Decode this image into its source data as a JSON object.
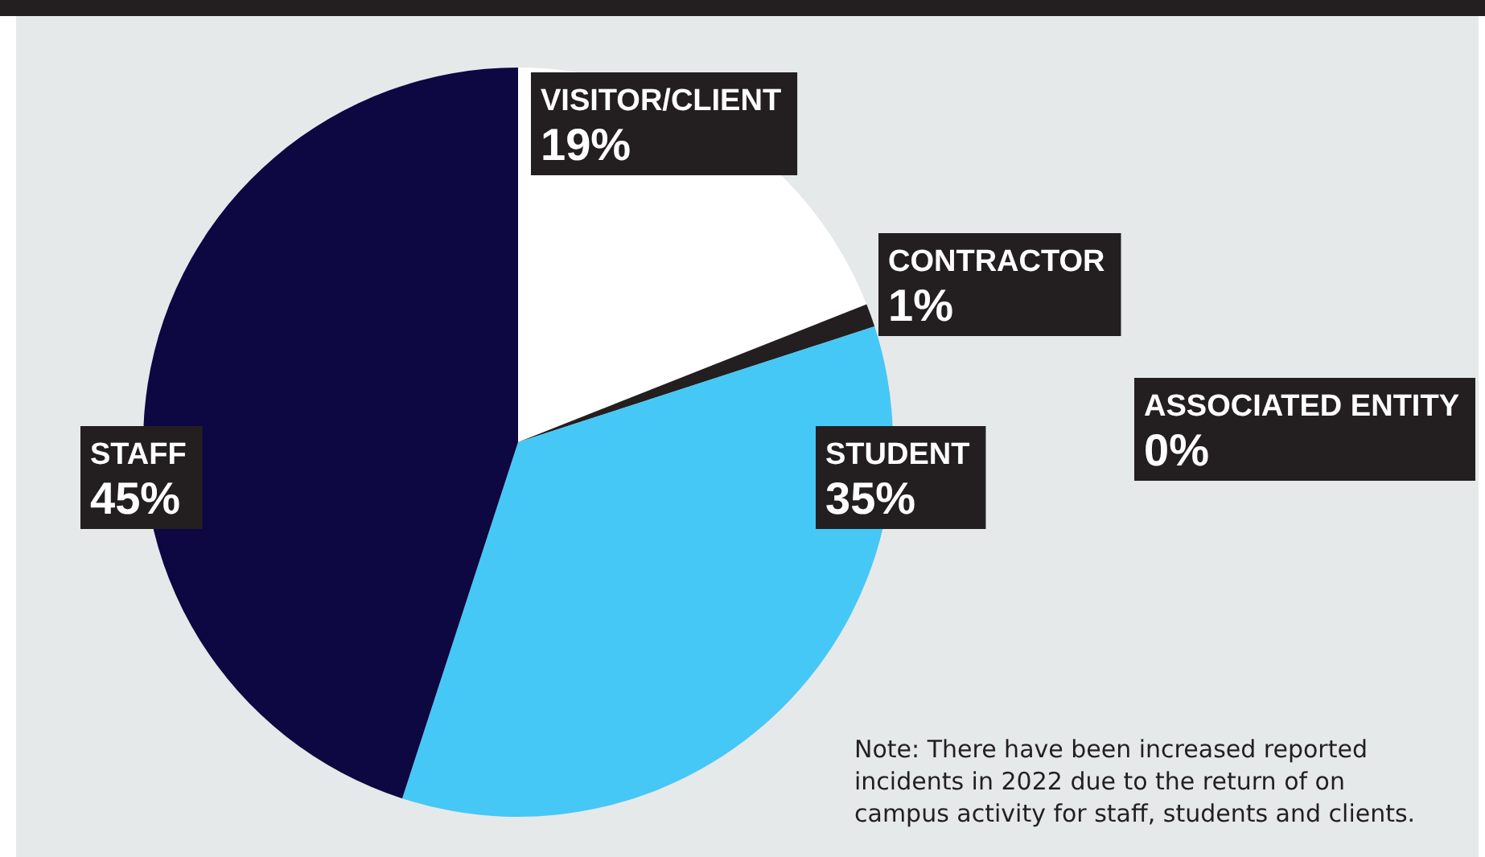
{
  "chart_data": {
    "type": "pie",
    "categories": [
      "VISITOR/CLIENT",
      "CONTRACTOR",
      "STUDENT",
      "ASSOCIATED ENTITY",
      "STAFF"
    ],
    "values": [
      19,
      1,
      35,
      0,
      45
    ],
    "value_labels": [
      "19%",
      "1%",
      "35%",
      "0%",
      "45%"
    ],
    "colors": [
      "#ffffff",
      "#231f20",
      "#45c8f5",
      "#231f20",
      "#0d0742"
    ],
    "legend": false,
    "annotations": [
      "Note: There have been increased reported incidents in 2022 due to the return of on campus activity for staff, students and clients."
    ]
  }
}
